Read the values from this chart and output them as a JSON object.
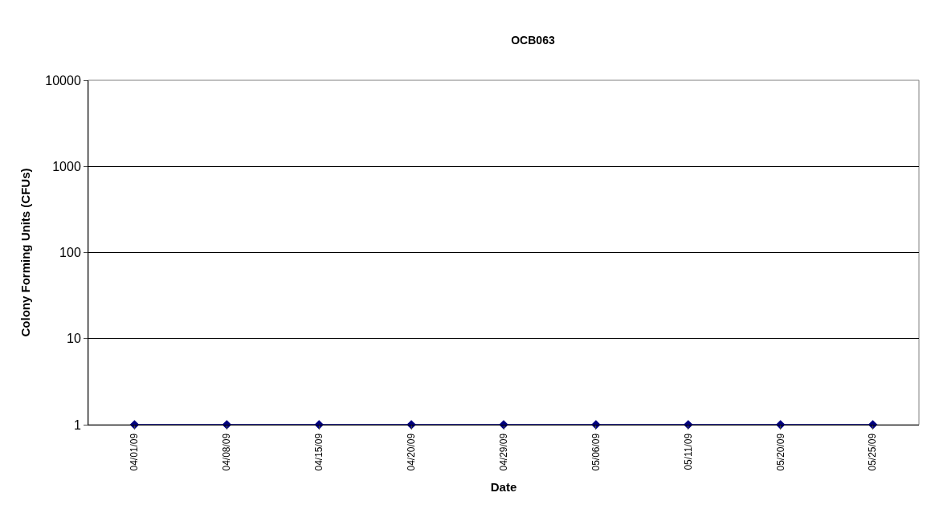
{
  "chart_data": {
    "type": "line",
    "title": "OCB063",
    "xlabel": "Date",
    "ylabel": "Colony Forming Units (CFUs)",
    "categories": [
      "04/01/09",
      "04/08/09",
      "04/15/09",
      "04/20/09",
      "04/29/09",
      "05/06/09",
      "05/11/09",
      "05/20/09",
      "05/25/09"
    ],
    "series": [
      {
        "color": "#000080",
        "values": [
          1,
          1,
          1,
          1,
          1,
          1,
          1,
          1,
          1
        ]
      }
    ],
    "log": "y",
    "ylim": [
      1,
      10000
    ],
    "yticks": [
      1,
      10,
      100,
      1000,
      10000
    ],
    "grid": "y",
    "legend": false,
    "marker": "diamond",
    "line_style": "solid"
  }
}
